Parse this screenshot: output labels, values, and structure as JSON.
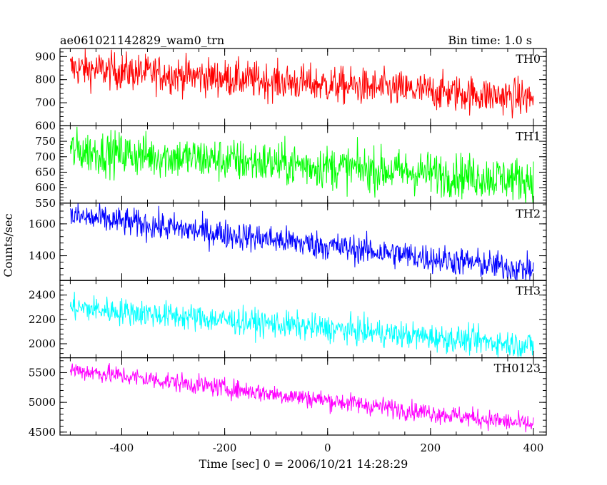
{
  "chart_data": {
    "type": "line",
    "title_left": "ae061021142829_wam0_trn",
    "title_right": "Bin time: 1.0 s",
    "xlabel": "Time [sec] 0 = 2006/10/21 14:28:29",
    "ylabel": "Counts/sec",
    "xlim": [
      -520,
      425
    ],
    "x_ticks": [
      -400,
      -200,
      0,
      200,
      400
    ],
    "x_range": [
      -500,
      400
    ],
    "grid": false,
    "panels": [
      {
        "name": "TH0",
        "color": "#ff0000",
        "ylim": [
          600,
          935
        ],
        "y_ticks": [
          600,
          700,
          800,
          900
        ],
        "trend": [
          850,
          720
        ],
        "noise": 40
      },
      {
        "name": "TH1",
        "color": "#00ff00",
        "ylim": [
          550,
          800
        ],
        "y_ticks": [
          550,
          600,
          650,
          700,
          750
        ],
        "trend": [
          720,
          625
        ],
        "noise": 35
      },
      {
        "name": "TH2",
        "color": "#0000ff",
        "ylim": [
          1245,
          1730
        ],
        "y_ticks": [
          1400,
          1600
        ],
        "trend": [
          1650,
          1310
        ],
        "noise": 45
      },
      {
        "name": "TH3",
        "color": "#00ffff",
        "ylim": [
          1885,
          2520
        ],
        "y_ticks": [
          2000,
          2200,
          2400
        ],
        "trend": [
          2300,
          1985
        ],
        "noise": 55
      },
      {
        "name": "TH0123",
        "color": "#ff00ff",
        "ylim": [
          4450,
          5750
        ],
        "y_ticks": [
          4500,
          5000,
          5500
        ],
        "trend": [
          5550,
          4620
        ],
        "noise": 80
      }
    ]
  }
}
